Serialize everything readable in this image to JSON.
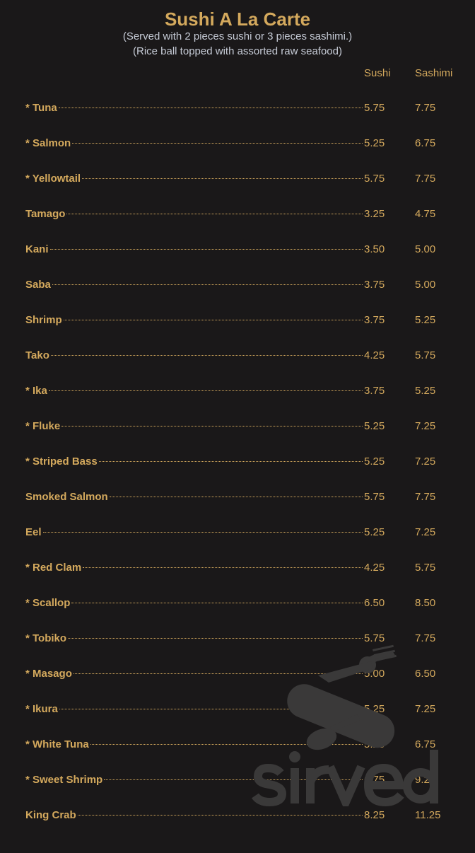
{
  "title": "Sushi A La Carte",
  "subtitles": [
    "(Served with 2 pieces sushi or 3 pieces sashimi.)",
    "(Rice ball topped with assorted raw seafood)"
  ],
  "columns": {
    "sushi": "Sushi",
    "sashimi": "Sashimi"
  },
  "items": [
    {
      "name": "* Tuna",
      "sushi": "5.75",
      "sashimi": "7.75"
    },
    {
      "name": "* Salmon",
      "sushi": "5.25",
      "sashimi": "6.75"
    },
    {
      "name": "* Yellowtail",
      "sushi": "5.75",
      "sashimi": "7.75"
    },
    {
      "name": "Tamago",
      "sushi": "3.25",
      "sashimi": "4.75"
    },
    {
      "name": "Kani",
      "sushi": "3.50",
      "sashimi": "5.00"
    },
    {
      "name": "Saba",
      "sushi": "3.75",
      "sashimi": "5.00"
    },
    {
      "name": "Shrimp",
      "sushi": "3.75",
      "sashimi": "5.25"
    },
    {
      "name": "Tako",
      "sushi": "4.25",
      "sashimi": "5.75"
    },
    {
      "name": "* Ika",
      "sushi": "3.75",
      "sashimi": "5.25"
    },
    {
      "name": "* Fluke",
      "sushi": "5.25",
      "sashimi": "7.25"
    },
    {
      "name": "* Striped Bass",
      "sushi": "5.25",
      "sashimi": "7.25"
    },
    {
      "name": "Smoked Salmon",
      "sushi": "5.75",
      "sashimi": "7.75"
    },
    {
      "name": "Eel",
      "sushi": "5.25",
      "sashimi": "7.25"
    },
    {
      "name": "* Red Clam",
      "sushi": "4.25",
      "sashimi": "5.75"
    },
    {
      "name": "* Scallop",
      "sushi": "6.50",
      "sashimi": "8.50"
    },
    {
      "name": "* Tobiko",
      "sushi": "5.75",
      "sashimi": "7.75"
    },
    {
      "name": "* Masago",
      "sushi": "5.00",
      "sashimi": "6.50"
    },
    {
      "name": "* Ikura",
      "sushi": "5.25",
      "sashimi": "7.25"
    },
    {
      "name": "* White Tuna",
      "sushi": "5.25",
      "sashimi": "6.75"
    },
    {
      "name": "* Sweet Shrimp",
      "sushi": "6.75",
      "sashimi": "9.25"
    },
    {
      "name": "King Crab",
      "sushi": "8.25",
      "sashimi": "11.25"
    }
  ],
  "watermark": "sirved",
  "colors": {
    "background": "#1a1819",
    "accent": "#d4a95d",
    "subtitle": "#c6cbd6"
  }
}
